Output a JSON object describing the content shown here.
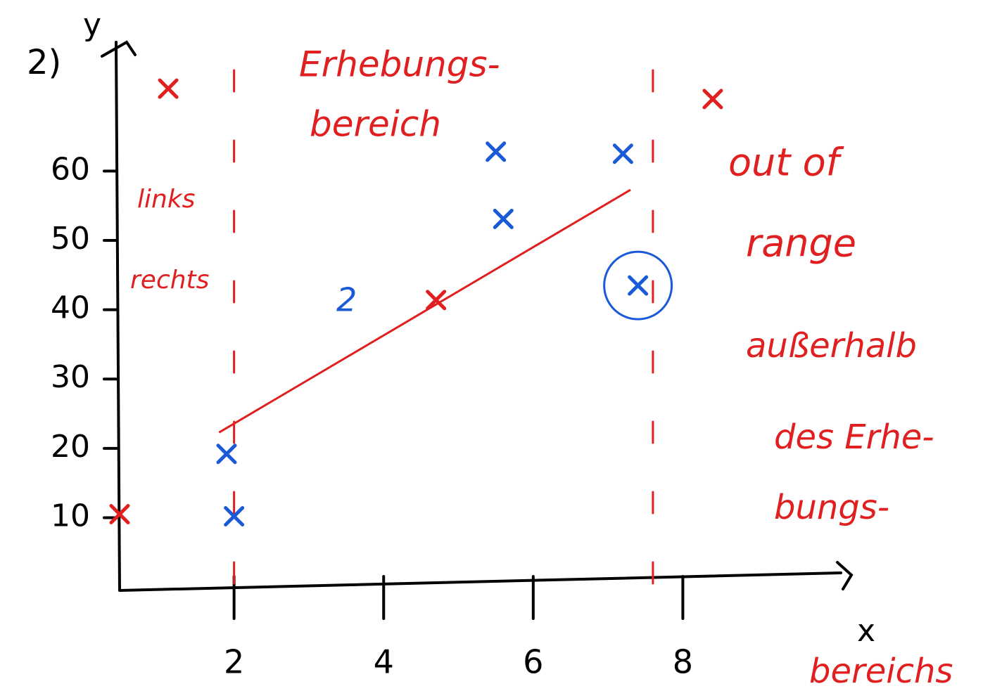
{
  "chart_data": {
    "type": "scatter",
    "label": "2)",
    "xlabel": "x",
    "ylabel": "y",
    "xlim": [
      0.47,
      10.16
    ],
    "ylim": [
      -0.5,
      78.6
    ],
    "xticks": [
      2,
      4,
      6,
      8
    ],
    "yticks": [
      10,
      20,
      30,
      40,
      50,
      60
    ],
    "series": [
      {
        "color": "#1a5ad8",
        "x": [
          1.9,
          2,
          5.5,
          5.6,
          7.2
        ],
        "values": [
          19.2,
          10.2,
          62.8,
          53.1,
          62.5
        ]
      },
      {
        "color": "#1a5ad8",
        "marker": "circled",
        "x": [
          7.4
        ],
        "values": [
          43.5
        ]
      },
      {
        "color": "#e02020",
        "x": [
          1.12,
          0.47,
          4.7,
          8.4
        ],
        "values": [
          71.9,
          10.5,
          41.4,
          70.4
        ]
      }
    ],
    "trend_line": {
      "color": "#e02020",
      "x": [
        1.8,
        7.3
      ],
      "values": [
        22.3,
        57.3
      ]
    },
    "range_bounds": {
      "color": "#e02020",
      "x": [
        2,
        7.6
      ]
    },
    "annotations": [
      {
        "color": "#e02020",
        "lines": [
          "Erhebungs-",
          "bereich"
        ]
      },
      {
        "color": "#e02020",
        "lines": [
          "links",
          "rechts"
        ]
      },
      {
        "color": "#e02020",
        "lines": [
          "out of",
          "range"
        ]
      },
      {
        "color": "#e02020",
        "lines": [
          "außerhalb",
          "des Erhe-",
          "bungs-",
          "bereichs"
        ]
      },
      {
        "color": "#1a5ad8",
        "lines": [
          "2"
        ]
      }
    ]
  }
}
